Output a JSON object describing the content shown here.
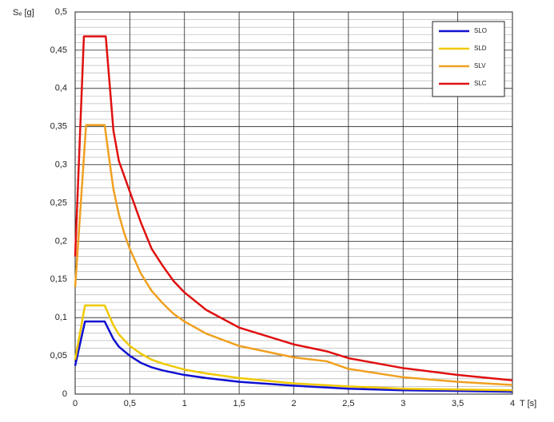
{
  "chart_data": {
    "type": "line",
    "y_label": "Sₑ [g]",
    "x_label": "T [s]",
    "xlim": [
      0,
      4
    ],
    "ylim": [
      0,
      0.5
    ],
    "xticks": [
      0,
      {
        "value": 0.5,
        "label": "0,5"
      },
      1,
      {
        "value": 1.5,
        "label": "1,5"
      },
      2,
      {
        "value": 2.5,
        "label": "2,5"
      },
      3,
      {
        "value": 3.5,
        "label": "3,5"
      },
      4
    ],
    "yticks": [
      0,
      {
        "value": 0.05,
        "label": "0,05"
      },
      {
        "value": 0.1,
        "label": "0,1"
      },
      {
        "value": 0.15,
        "label": "0,15"
      },
      {
        "value": 0.2,
        "label": "0,2"
      },
      {
        "value": 0.25,
        "label": "0,25"
      },
      {
        "value": 0.3,
        "label": "0,3"
      },
      {
        "value": 0.35,
        "label": "0,35"
      },
      {
        "value": 0.4,
        "label": "0,4"
      },
      {
        "value": 0.45,
        "label": "0,45"
      },
      {
        "value": 0.5,
        "label": "0,5"
      }
    ],
    "grid": true,
    "legend": "top-right",
    "series": [
      {
        "name": "SLO",
        "color": "#1010d0",
        "x": [
          0,
          0.09,
          0.27,
          0.35,
          0.4,
          0.5,
          0.6,
          0.7,
          0.8,
          1.0,
          1.2,
          1.5,
          1.8,
          2.0,
          2.5,
          3.0,
          3.5,
          4.0
        ],
        "values": [
          0.037,
          0.095,
          0.095,
          0.072,
          0.062,
          0.05,
          0.041,
          0.035,
          0.031,
          0.025,
          0.021,
          0.016,
          0.013,
          0.011,
          0.007,
          0.005,
          0.004,
          0.003
        ]
      },
      {
        "name": "SLD",
        "color": "#f0c800",
        "x": [
          0,
          0.09,
          0.27,
          0.35,
          0.4,
          0.5,
          0.6,
          0.7,
          0.8,
          1.0,
          1.2,
          1.5,
          2.0,
          2.5,
          3.0,
          3.5,
          4.0
        ],
        "values": [
          0.045,
          0.116,
          0.116,
          0.09,
          0.078,
          0.063,
          0.053,
          0.045,
          0.04,
          0.032,
          0.027,
          0.021,
          0.014,
          0.01,
          0.007,
          0.006,
          0.005
        ]
      },
      {
        "name": "SLV",
        "color": "#f0a020",
        "x": [
          0,
          0.1,
          0.27,
          0.3,
          0.35,
          0.4,
          0.45,
          0.5,
          0.6,
          0.7,
          0.8,
          0.9,
          1.0,
          1.2,
          1.5,
          2.0,
          2.3,
          2.5,
          3.0,
          3.5,
          4.0
        ],
        "values": [
          0.14,
          0.352,
          0.352,
          0.32,
          0.268,
          0.235,
          0.21,
          0.19,
          0.158,
          0.135,
          0.119,
          0.105,
          0.095,
          0.079,
          0.063,
          0.048,
          0.043,
          0.033,
          0.022,
          0.016,
          0.012
        ]
      },
      {
        "name": "SLC",
        "color": "#e01010",
        "x": [
          0,
          0.08,
          0.28,
          0.35,
          0.4,
          0.5,
          0.6,
          0.7,
          0.8,
          0.9,
          1.0,
          1.2,
          1.5,
          2.0,
          2.3,
          2.5,
          3.0,
          3.5,
          4.0
        ],
        "values": [
          0.18,
          0.468,
          0.468,
          0.345,
          0.305,
          0.265,
          0.225,
          0.19,
          0.168,
          0.148,
          0.133,
          0.11,
          0.087,
          0.065,
          0.056,
          0.047,
          0.034,
          0.025,
          0.018
        ]
      }
    ]
  }
}
